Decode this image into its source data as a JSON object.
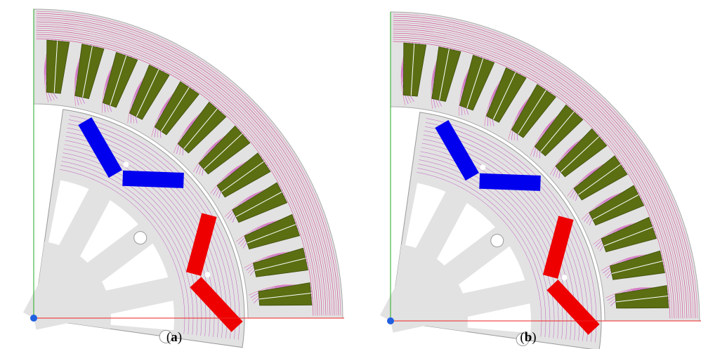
{
  "panels": [
    {
      "caption": {
        "open": "(",
        "letter": "a",
        "close": ")"
      }
    },
    {
      "caption": {
        "open": "(",
        "letter": "b",
        "close": ")"
      }
    }
  ]
}
